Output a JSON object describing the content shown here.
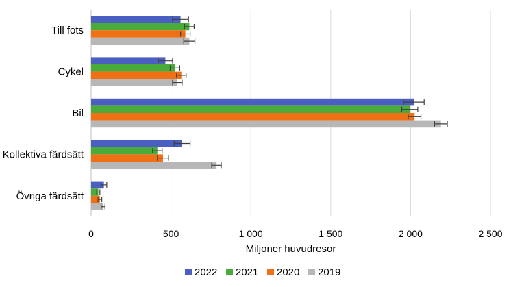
{
  "chart_data": {
    "type": "bar",
    "orientation": "horizontal",
    "categories": [
      "Till fots",
      "Cykel",
      "Bil",
      "Kollektiva färdsätt",
      "Övriga färdsätt"
    ],
    "series": [
      {
        "name": "2022",
        "color": "#4a5fc1",
        "values": [
          560,
          465,
          2020,
          570,
          80
        ],
        "error": [
          50,
          45,
          65,
          50,
          18
        ]
      },
      {
        "name": "2021",
        "color": "#4aab3a",
        "values": [
          615,
          525,
          1995,
          415,
          45
        ],
        "error": [
          30,
          30,
          50,
          30,
          10
        ]
      },
      {
        "name": "2020",
        "color": "#f07016",
        "values": [
          590,
          565,
          2025,
          450,
          55
        ],
        "error": [
          30,
          30,
          40,
          35,
          12
        ]
      },
      {
        "name": "2019",
        "color": "#b7b7b7",
        "values": [
          615,
          540,
          2190,
          785,
          75
        ],
        "error": [
          35,
          30,
          40,
          30,
          12
        ]
      }
    ],
    "xlim": [
      0,
      2500
    ],
    "xticks": [
      0,
      500,
      1000,
      1500,
      2000,
      2500
    ],
    "xtick_labels": [
      "0",
      "500",
      "1 000",
      "1 500",
      "2 000",
      "2 500"
    ],
    "xlabel": "Miljoner huvudresor",
    "grid": "vertical",
    "legend_position": "bottom"
  }
}
